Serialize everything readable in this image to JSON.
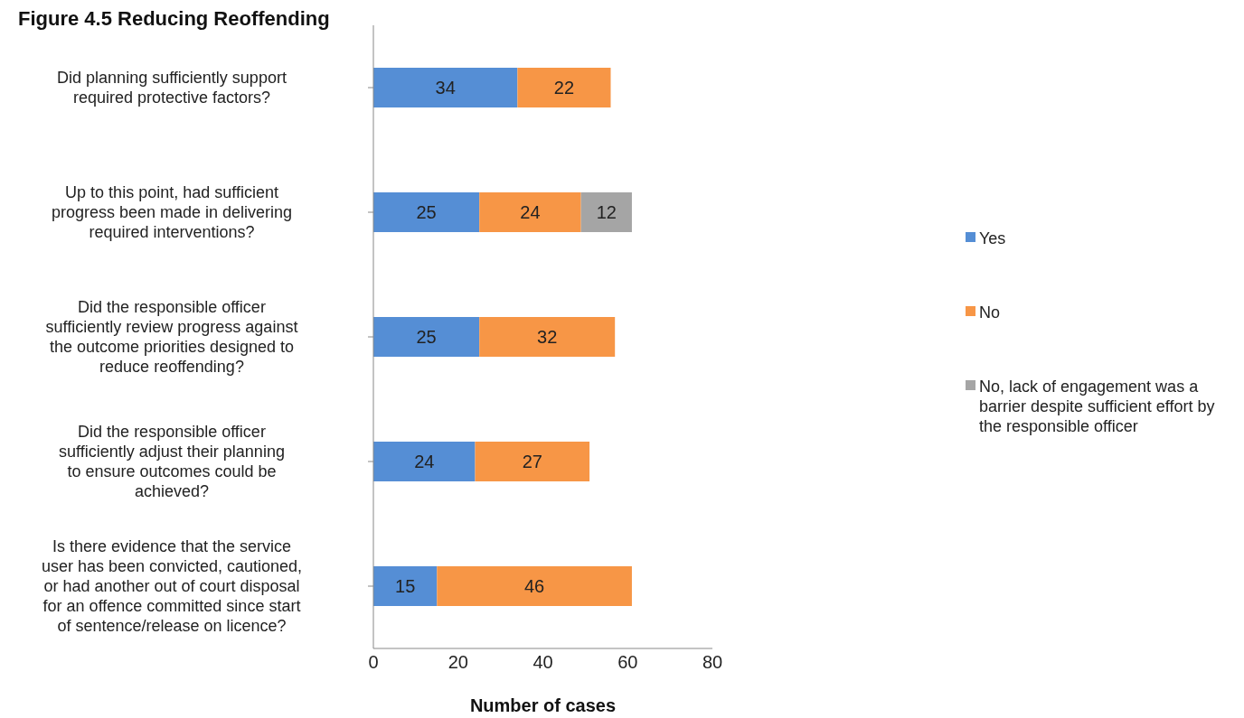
{
  "chart_data": {
    "type": "bar",
    "orientation": "horizontal",
    "stacked": true,
    "title": "Figure 4.5 Reducing Reoffending",
    "xlabel": "Number of cases",
    "categories": [
      "Did planning sufficiently support required protective factors?",
      "Up to this point, had sufficient progress been made in delivering required interventions?",
      "Did the responsible officer sufficiently review progress against the outcome priorities designed to reduce reoffending?",
      "Did the responsible officer sufficiently adjust their planning to ensure outcomes could be achieved?",
      "Is there evidence that the service user has been convicted, cautioned, or had another out of court disposal for an offence committed since start of sentence/release on licence?"
    ],
    "series": [
      {
        "name": "Yes",
        "color": "#558ed5",
        "values": [
          34,
          25,
          25,
          24,
          15
        ]
      },
      {
        "name": "No",
        "color": "#f79646",
        "values": [
          22,
          24,
          32,
          27,
          46
        ]
      },
      {
        "name": "No, lack of engagement was a barrier despite sufficient effort by the responsible officer",
        "color": "#a5a5a5",
        "values": [
          null,
          12,
          null,
          null,
          null
        ]
      }
    ],
    "xlim": [
      0,
      80
    ],
    "xticks": [
      0,
      20,
      40,
      60,
      80
    ],
    "grid": false,
    "legend": "right",
    "data_labels": true
  }
}
